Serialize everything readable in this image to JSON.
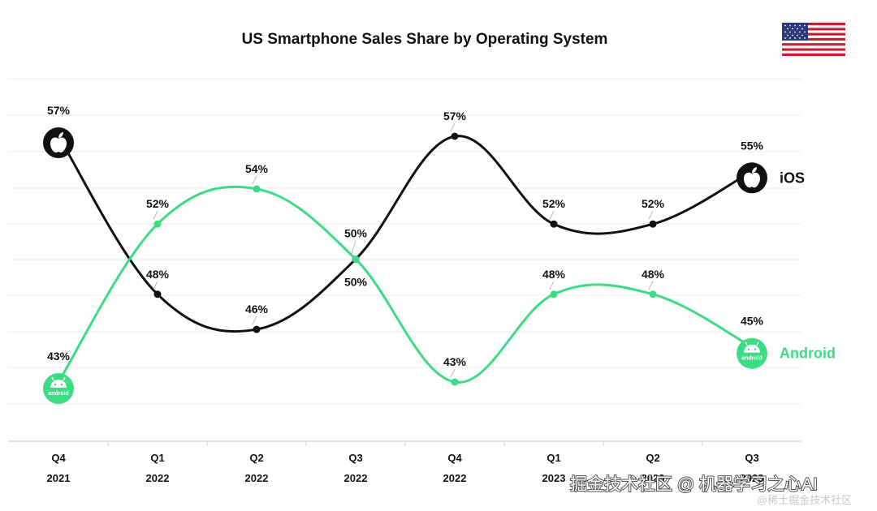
{
  "chart_data": {
    "type": "line",
    "title": "US Smartphone Sales Share by Operating System",
    "categories": [
      {
        "quarter": "Q4",
        "year": "2021"
      },
      {
        "quarter": "Q1",
        "year": "2022"
      },
      {
        "quarter": "Q2",
        "year": "2022"
      },
      {
        "quarter": "Q3",
        "year": "2022"
      },
      {
        "quarter": "Q4",
        "year": "2022"
      },
      {
        "quarter": "Q1",
        "year": "2023"
      },
      {
        "quarter": "Q2",
        "year": "2023"
      },
      {
        "quarter": "Q3",
        "year": "2023"
      }
    ],
    "series": [
      {
        "name": "iOS",
        "color": "#111111",
        "icon": "apple-icon",
        "values": [
          57,
          48,
          46,
          50,
          57,
          52,
          52,
          55
        ]
      },
      {
        "name": "Android",
        "color": "#3ddc84",
        "icon": "android-icon",
        "values": [
          43,
          52,
          54,
          50,
          43,
          48,
          48,
          45
        ]
      }
    ],
    "ylim": [
      40,
      60
    ],
    "grid": true,
    "flag": "us-flag-icon",
    "icon_badge_text": "android"
  },
  "watermark": {
    "main": "掘金技术社区 @ 机器学习之心AI",
    "sub": "@稀土掘金技术社区"
  }
}
